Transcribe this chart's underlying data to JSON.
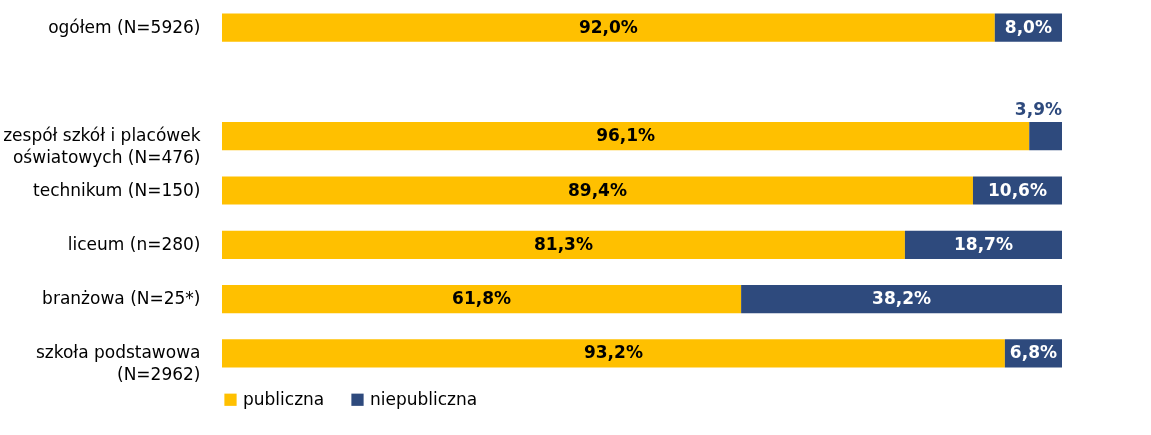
{
  "chart_data": {
    "type": "bar",
    "orientation": "horizontal",
    "stacked": true,
    "legend": "bottom",
    "grid": false,
    "tick_labels": "y",
    "xlim": [
      0,
      100
    ],
    "categories": [
      "ogółem (N=5926)",
      null,
      "zespół szkół i placówek\noświatowych (N=476)",
      "technikum (N=150)",
      "liceum (n=280)",
      "branżowa (N=25*)",
      "szkoła podstawowa\n(N=2962)"
    ],
    "series": [
      {
        "name": "publiczna",
        "color": "#ffc000",
        "values": [
          92.0,
          null,
          96.1,
          89.4,
          81.3,
          61.8,
          93.2
        ],
        "value_labels": [
          "92,0%",
          null,
          "96,1%",
          "89,4%",
          "81,3%",
          "61,8%",
          "93,2%"
        ]
      },
      {
        "name": "niepubliczna",
        "color": "#2e4a7d",
        "values": [
          8.0,
          null,
          3.9,
          10.6,
          18.7,
          38.2,
          6.8
        ],
        "value_labels": [
          "8,0%",
          null,
          "3,9%",
          "10,6%",
          "18,7%",
          "38,2%",
          "6,8%"
        ]
      }
    ]
  }
}
